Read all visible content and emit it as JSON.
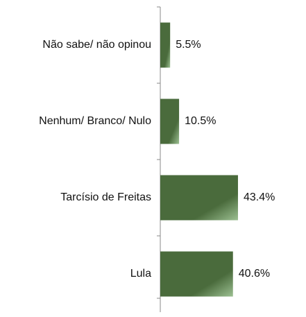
{
  "chart_data": {
    "type": "bar",
    "orientation": "horizontal",
    "categories": [
      "Não sabe/ não opinou",
      "Nenhum/ Branco/ Nulo",
      "Tarcísio de Freitas",
      "Lula"
    ],
    "values": [
      5.5,
      10.5,
      43.4,
      40.6
    ],
    "value_labels": [
      "5.5%",
      "10.5%",
      "43.4%",
      "40.6%"
    ],
    "color": "#4a6b3c"
  }
}
